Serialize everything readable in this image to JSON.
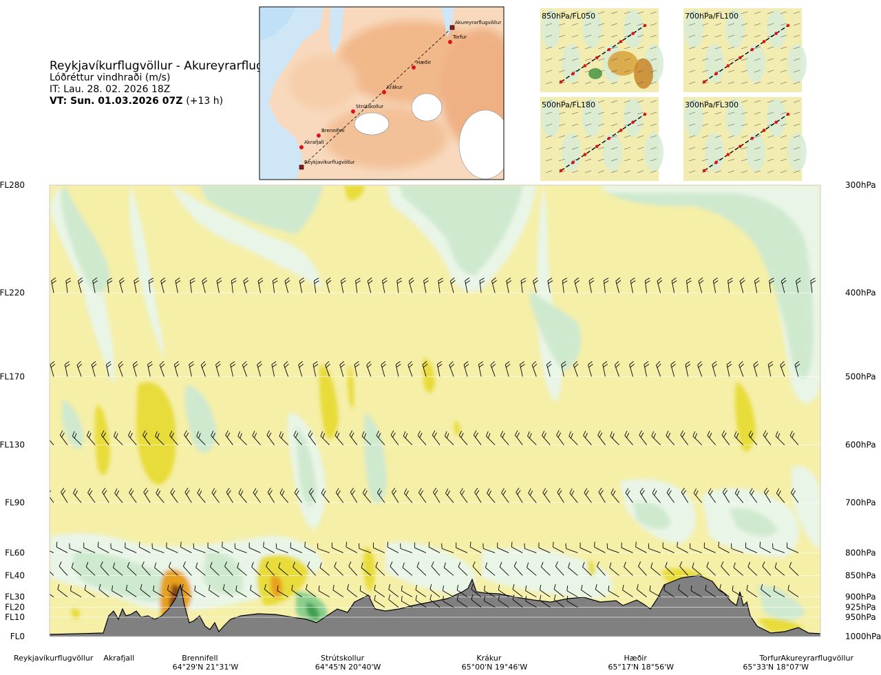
{
  "header": {
    "route": "Reykjavíkurflugvöllur - Akureyrarflugvöllur",
    "subtitle": "Lóðréttur vindhraði (m/s)",
    "issue_time": "IT: Lau. 28. 02. 2026 18Z",
    "valid_time": "VT: Sun. 01.03.2026 07Z",
    "lead": "(+13 h)"
  },
  "route_map": {
    "points": [
      "Reykjavíkurflugvöllur",
      "Akrafjall",
      "Brennifell",
      "Strútskollur",
      "Krákur",
      "Hæðir",
      "Torfur",
      "Akureyrarflugvöllur"
    ]
  },
  "level_panels": [
    {
      "label": "850hPa/FL050"
    },
    {
      "label": "700hPa/FL100"
    },
    {
      "label": "500hPa/FL180"
    },
    {
      "label": "300hPa/FL300"
    }
  ],
  "chart_data": {
    "type": "heatmap",
    "description_quantity": "vertical wind speed (m/s)",
    "flight_levels": [
      "FL280",
      "FL220",
      "FL170",
      "FL130",
      "FL90",
      "FL60",
      "FL40",
      "FL30",
      "FL20",
      "FL10",
      "FL0"
    ],
    "pressure_levels": [
      "300hPa",
      "400hPa",
      "500hPa",
      "600hPa",
      "700hPa",
      "800hPa",
      "850hPa",
      "900hPa",
      "925hPa",
      "950hPa",
      "1000hPa"
    ],
    "pressure_values_hpa": [
      300,
      400,
      500,
      600,
      700,
      800,
      850,
      900,
      925,
      950,
      1000
    ],
    "x_stations": [
      {
        "name": "Reykjavíkurflugvöllur",
        "coord": "",
        "frac": 0.0
      },
      {
        "name": "Akrafjall",
        "coord": "",
        "frac": 0.09
      },
      {
        "name": "Brennifell",
        "coord": "64°29'N 21°31'W",
        "frac": 0.195
      },
      {
        "name": "Strútskollur",
        "coord": "64°45'N 20°40'W",
        "frac": 0.38
      },
      {
        "name": "Krákur",
        "coord": "65°00'N 19°46'W",
        "frac": 0.57
      },
      {
        "name": "Hæðir",
        "coord": "65°17'N 18°56'W",
        "frac": 0.76
      },
      {
        "name": "Torfur",
        "coord": "65°33'N 18°07'W",
        "frac": 0.935
      },
      {
        "name": "Akureyrarflugvöllur",
        "coord": "",
        "frac": 1.0
      }
    ],
    "colors": {
      "strong_sink": "#8b4513",
      "sink": "#e8a11a",
      "weak_sink": "#e8dc3a",
      "neutral_down": "#f5efa8",
      "neutral": "#fbf8d8",
      "neutral_up": "#e9f5e6",
      "weak_rise": "#cfe9cf",
      "rise": "#8dcf8d",
      "strong_rise": "#3f9f4f",
      "terrain": "#808080"
    }
  }
}
